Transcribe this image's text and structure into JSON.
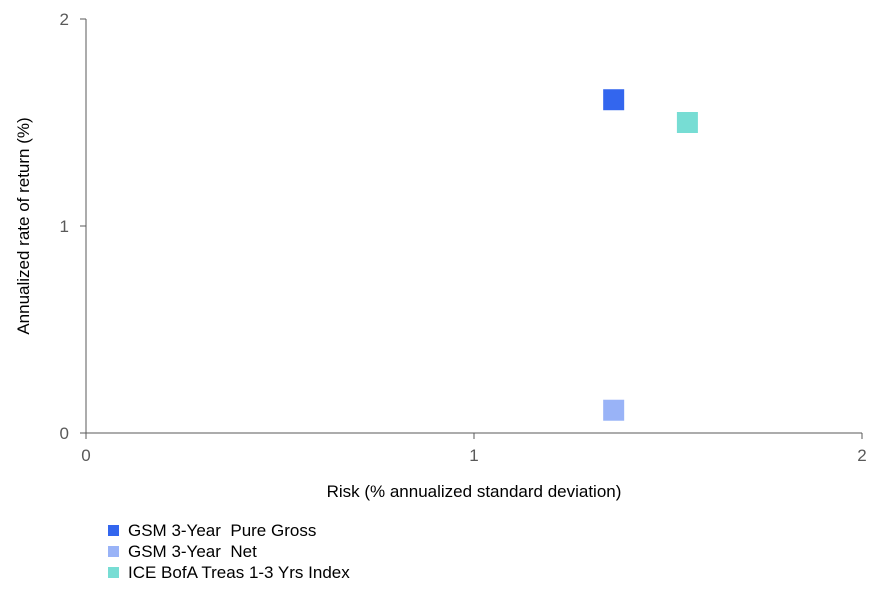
{
  "chart_data": {
    "type": "scatter",
    "title": "",
    "xlabel": "Risk (% annualized standard deviation)",
    "ylabel": "Annualized rate of return (%)",
    "xlim": [
      0,
      2
    ],
    "ylim": [
      0,
      2
    ],
    "xticks": [
      "0",
      "1",
      "2"
    ],
    "yticks": [
      "0",
      "1",
      "2"
    ],
    "grid": false,
    "legend_position": "bottom-left",
    "series": [
      {
        "name": "GSM 3-Year  Pure Gross",
        "color": "#3366ee",
        "marker": "square",
        "points": [
          {
            "x": 1.36,
            "y": 1.61
          }
        ]
      },
      {
        "name": "GSM 3-Year  Net",
        "color": "#99b3f7",
        "marker": "square",
        "points": [
          {
            "x": 1.36,
            "y": 0.11
          }
        ]
      },
      {
        "name": "ICE BofA Treas 1-3 Yrs Index",
        "color": "#77ddd4",
        "marker": "square",
        "points": [
          {
            "x": 1.55,
            "y": 1.5
          }
        ]
      }
    ]
  }
}
